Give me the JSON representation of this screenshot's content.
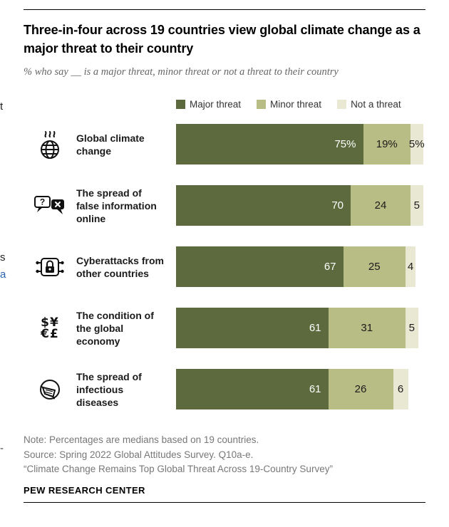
{
  "title": "Three-in-four across 19 countries view global climate change as a major threat to their country",
  "subtitle": "% who say __ is a major threat, minor threat or not a threat to their country",
  "chart_data": {
    "type": "bar",
    "orientation": "horizontal",
    "stacked": true,
    "unit": "%",
    "xlim": [
      0,
      100
    ],
    "grid": false,
    "legend_position": "top",
    "categories": [
      "Global climate change",
      "The spread of false information online",
      "Cyberattacks from other countries",
      "The condition of the global economy",
      "The spread of infectious diseases"
    ],
    "series": [
      {
        "name": "Major threat",
        "color": "#5c6a3d",
        "values": [
          75,
          70,
          67,
          61,
          61
        ]
      },
      {
        "name": "Minor threat",
        "color": "#b8bd85",
        "values": [
          19,
          24,
          25,
          31,
          26
        ]
      },
      {
        "name": "Not a threat",
        "color": "#e9e8d3",
        "values": [
          5,
          5,
          4,
          5,
          6
        ]
      }
    ],
    "value_labels": [
      [
        "75%",
        "19%",
        "5%"
      ],
      [
        "70",
        "24",
        "5"
      ],
      [
        "67",
        "25",
        "4"
      ],
      [
        "61",
        "31",
        "5"
      ],
      [
        "61",
        "26",
        "6"
      ]
    ]
  },
  "icon_glyphs": {
    "question_mark": "?",
    "economy_line1": "$¥",
    "economy_line2": "€£"
  },
  "notes": [
    "Note: Percentages are medians based on 19 countries.",
    "Source: Spring 2022 Global Attitudes Survey. Q10a-e.",
    "“Climate Change Remains Top Global Threat Across 19-Country Survey”"
  ],
  "footer": "PEW RESEARCH CENTER",
  "edge_fragments": [
    {
      "text": "t"
    },
    {
      "text": "s"
    },
    {
      "text": "a"
    },
    {
      "text": "-"
    }
  ]
}
